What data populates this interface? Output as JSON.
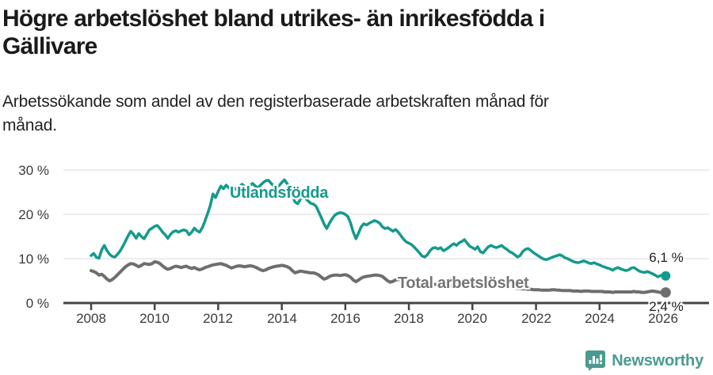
{
  "title": {
    "line1": "Högre arbetslöshet bland utrikes- än inrikesfödda i",
    "line2": "Gällivare"
  },
  "subtitle": {
    "line1": "Arbetssökande som andel av den registerbaserade arbetskraften månad för",
    "line2": "månad."
  },
  "footer": {
    "brand": "Newsworthy",
    "brand_color": "#4a9b8f"
  },
  "chart_data": {
    "type": "line",
    "title": "Högre arbetslöshet bland utrikes- än inrikesfödda i Gällivare",
    "subtitle": "Arbetssökande som andel av den registerbaserade arbetskraften månad för månad.",
    "xlabel": "",
    "ylabel": "",
    "x_unit": "month",
    "x_range_years": [
      2008.0,
      2026.083
    ],
    "ylim": [
      0,
      30
    ],
    "grid": "horizontal",
    "legend_position": "inline-labels",
    "y_tick_labels": [
      "30 %",
      "20 %",
      "10 %",
      "0 %"
    ],
    "x_tick_labels": [
      "2008",
      "2010",
      "2012",
      "2014",
      "2016",
      "2018",
      "2020",
      "2022",
      "2024",
      "2026"
    ],
    "series": [
      {
        "name": "Utlandsfödda",
        "color": "#149a8c",
        "name_color": "#149a8c",
        "end_label": "6,1 %",
        "start_year": 2008,
        "points_per_year": 12,
        "values": [
          10.7,
          11.2,
          10.3,
          10.1,
          12.0,
          13.0,
          11.8,
          11.0,
          10.5,
          10.4,
          11.0,
          11.8,
          12.8,
          14.0,
          15.2,
          16.2,
          15.5,
          14.6,
          15.7,
          15.0,
          14.5,
          15.5,
          16.5,
          16.9,
          17.3,
          17.5,
          16.8,
          16.0,
          15.4,
          14.6,
          15.5,
          16.1,
          16.3,
          16.0,
          16.3,
          16.5,
          16.3,
          15.4,
          16.0,
          16.9,
          16.3,
          16.0,
          17.0,
          18.5,
          20.2,
          22.0,
          24.6,
          23.8,
          25.2,
          26.4,
          25.8,
          26.6,
          26.0,
          25.3,
          26.0,
          25.5,
          26.2,
          26.8,
          26.3,
          25.8,
          26.5,
          27.0,
          26.4,
          26.0,
          26.6,
          27.2,
          27.6,
          27.7,
          27.0,
          26.4,
          26.0,
          26.5,
          27.2,
          27.8,
          27.0,
          25.8,
          24.2,
          22.8,
          22.4,
          23.4,
          24.0,
          23.6,
          23.0,
          22.5,
          22.3,
          21.8,
          20.5,
          19.2,
          17.8,
          16.8,
          18.0,
          19.0,
          19.8,
          20.2,
          20.4,
          20.3,
          20.0,
          19.5,
          18.0,
          16.0,
          14.5,
          15.8,
          17.2,
          17.9,
          17.6,
          18.0,
          18.3,
          18.6,
          18.4,
          18.0,
          17.2,
          16.8,
          17.0,
          16.6,
          16.2,
          16.6,
          16.0,
          15.2,
          14.4,
          13.8,
          13.5,
          13.2,
          12.6,
          12.0,
          11.3,
          10.6,
          10.4,
          10.9,
          11.8,
          12.4,
          12.5,
          12.2,
          12.5,
          11.8,
          12.1,
          12.5,
          13.0,
          13.4,
          13.0,
          13.6,
          13.9,
          14.3,
          13.5,
          12.8,
          12.5,
          12.1,
          12.7,
          11.6,
          11.3,
          12.0,
          12.7,
          13.0,
          12.7,
          12.5,
          12.7,
          13.0,
          12.5,
          12.1,
          11.6,
          11.3,
          10.9,
          10.4,
          10.7,
          11.6,
          12.1,
          12.3,
          11.9,
          11.4,
          11.0,
          10.6,
          10.2,
          9.9,
          9.8,
          10.0,
          10.3,
          10.5,
          10.7,
          10.9,
          10.6,
          10.2,
          10.0,
          9.7,
          9.4,
          9.2,
          9.1,
          9.3,
          9.5,
          9.3,
          9.0,
          8.9,
          9.1,
          8.8,
          8.6,
          8.3,
          8.1,
          7.9,
          7.7,
          7.4,
          7.8,
          8.0,
          7.7,
          7.5,
          7.3,
          7.5,
          7.9,
          8.0,
          7.6,
          7.2,
          7.0,
          6.9,
          7.1,
          6.9,
          6.6,
          6.3,
          5.9,
          6.2,
          6.3,
          6.1
        ]
      },
      {
        "name": "Total arbetslöshet",
        "color": "#6e6e6e",
        "name_color": "#757575",
        "end_label": "2,4 %",
        "start_year": 2008,
        "points_per_year": 12,
        "values": [
          7.3,
          7.1,
          6.8,
          6.3,
          6.5,
          6.0,
          5.4,
          5.0,
          5.3,
          5.8,
          6.4,
          7.0,
          7.6,
          8.2,
          8.6,
          8.9,
          8.8,
          8.5,
          8.2,
          8.5,
          8.9,
          8.8,
          8.7,
          8.9,
          9.3,
          9.2,
          8.9,
          8.4,
          7.9,
          7.6,
          7.8,
          8.1,
          8.3,
          8.2,
          8.0,
          8.2,
          8.3,
          8.0,
          7.8,
          8.0,
          7.7,
          7.5,
          7.7,
          8.0,
          8.2,
          8.4,
          8.6,
          8.7,
          8.8,
          8.9,
          8.7,
          8.5,
          8.2,
          7.9,
          8.1,
          8.3,
          8.4,
          8.3,
          8.2,
          8.3,
          8.4,
          8.3,
          8.1,
          7.8,
          7.5,
          7.3,
          7.5,
          7.8,
          8.0,
          8.2,
          8.3,
          8.4,
          8.5,
          8.4,
          8.2,
          7.9,
          7.3,
          6.8,
          7.0,
          7.2,
          7.1,
          7.0,
          6.9,
          6.8,
          6.8,
          6.6,
          6.3,
          5.8,
          5.4,
          5.6,
          6.0,
          6.2,
          6.3,
          6.3,
          6.2,
          6.3,
          6.4,
          6.2,
          5.8,
          5.2,
          4.8,
          5.2,
          5.6,
          5.9,
          6.0,
          6.1,
          6.2,
          6.3,
          6.3,
          6.2,
          6.0,
          5.5,
          5.0,
          4.7,
          4.9,
          5.2,
          5.3,
          5.2,
          5.1,
          5.0,
          4.9,
          4.8,
          4.7,
          4.5,
          4.3,
          4.2,
          4.3,
          4.4,
          4.4,
          4.3,
          4.2,
          4.2,
          4.1,
          4.1,
          4.0,
          3.9,
          3.9,
          3.8,
          3.9,
          4.0,
          4.0,
          3.9,
          3.9,
          3.8,
          3.8,
          3.8,
          3.9,
          4.1,
          4.2,
          4.1,
          4.0,
          3.9,
          3.9,
          3.8,
          3.7,
          3.7,
          3.6,
          3.6,
          3.5,
          3.4,
          3.4,
          3.3,
          3.3,
          3.2,
          3.2,
          3.1,
          3.1,
          3.0,
          3.0,
          3.0,
          2.9,
          2.9,
          2.9,
          2.9,
          3.0,
          3.0,
          2.9,
          2.9,
          2.8,
          2.8,
          2.8,
          2.8,
          2.7,
          2.7,
          2.7,
          2.6,
          2.7,
          2.7,
          2.7,
          2.6,
          2.6,
          2.6,
          2.6,
          2.6,
          2.5,
          2.5,
          2.5,
          2.4,
          2.5,
          2.5,
          2.5,
          2.5,
          2.5,
          2.5,
          2.5,
          2.6,
          2.5,
          2.5,
          2.4,
          2.4,
          2.5,
          2.6,
          2.7,
          2.6,
          2.5,
          2.4,
          2.5,
          2.4
        ]
      }
    ]
  }
}
